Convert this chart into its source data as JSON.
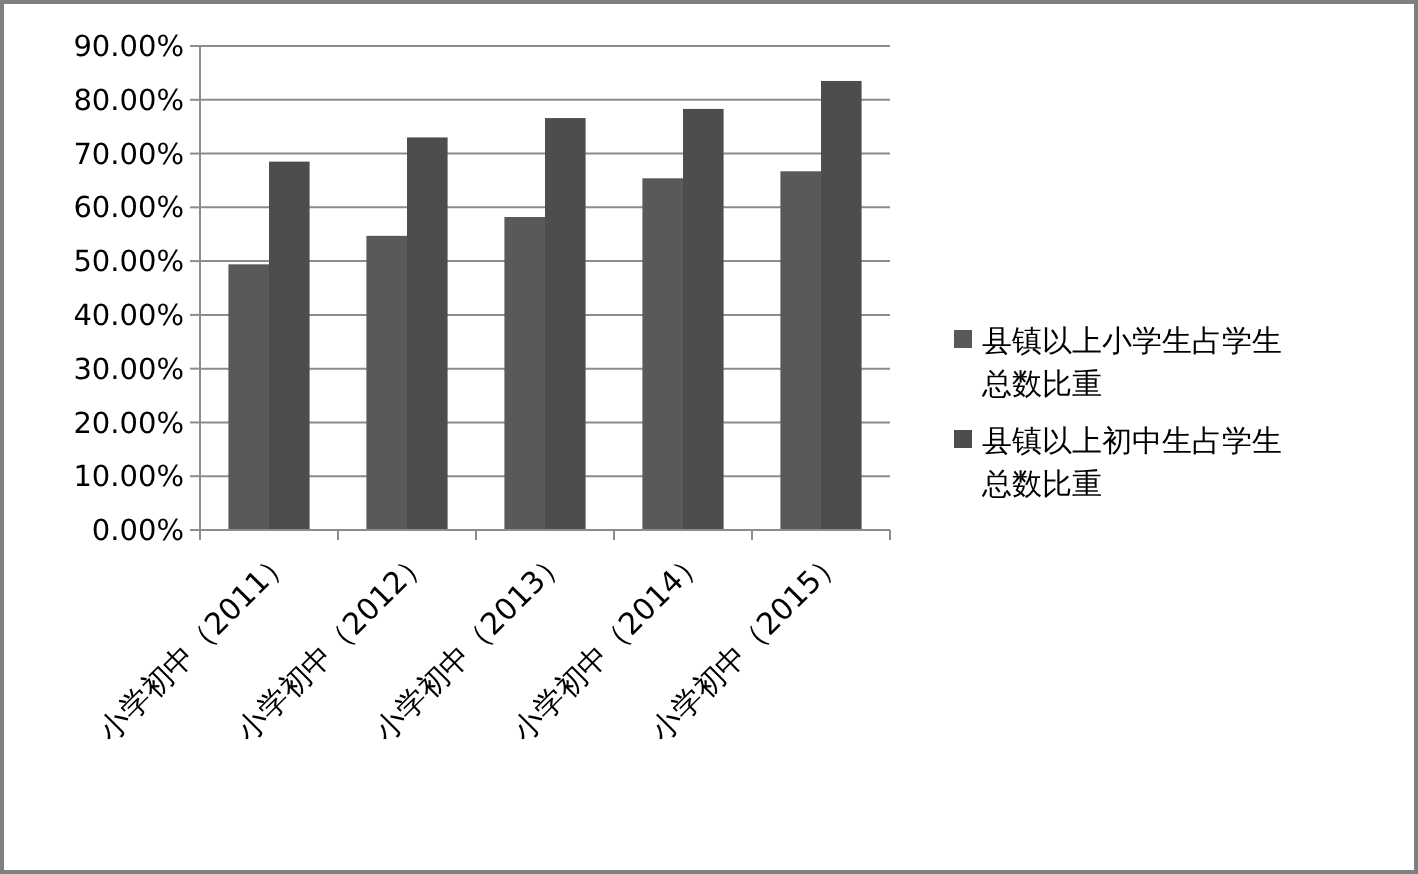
{
  "chart_data": {
    "type": "bar",
    "categories": [
      "小学初中（2011）",
      "小学初中（2012）",
      "小学初中（2013）",
      "小学初中（2014）",
      "小学初中（2015）"
    ],
    "series": [
      {
        "name": "县镇以上小学生占学生总数比重",
        "color": "#595959",
        "values": [
          49.4,
          54.7,
          58.2,
          65.4,
          66.7
        ]
      },
      {
        "name": "县镇以上初中生占学生总数比重",
        "color": "#4d4d4d",
        "values": [
          68.5,
          73.0,
          76.6,
          78.3,
          83.5
        ]
      }
    ],
    "ylim": [
      0,
      90
    ],
    "yticks": [
      {
        "value": 0,
        "label": "0.00%"
      },
      {
        "value": 10,
        "label": "10.00%"
      },
      {
        "value": 20,
        "label": "20.00%"
      },
      {
        "value": 30,
        "label": "30.00%"
      },
      {
        "value": 40,
        "label": "40.00%"
      },
      {
        "value": 50,
        "label": "50.00%"
      },
      {
        "value": 60,
        "label": "60.00%"
      },
      {
        "value": 70,
        "label": "70.00%"
      },
      {
        "value": 80,
        "label": "80.00%"
      },
      {
        "value": 90,
        "label": "90.00%"
      }
    ],
    "grid": "y",
    "legend": "right"
  }
}
